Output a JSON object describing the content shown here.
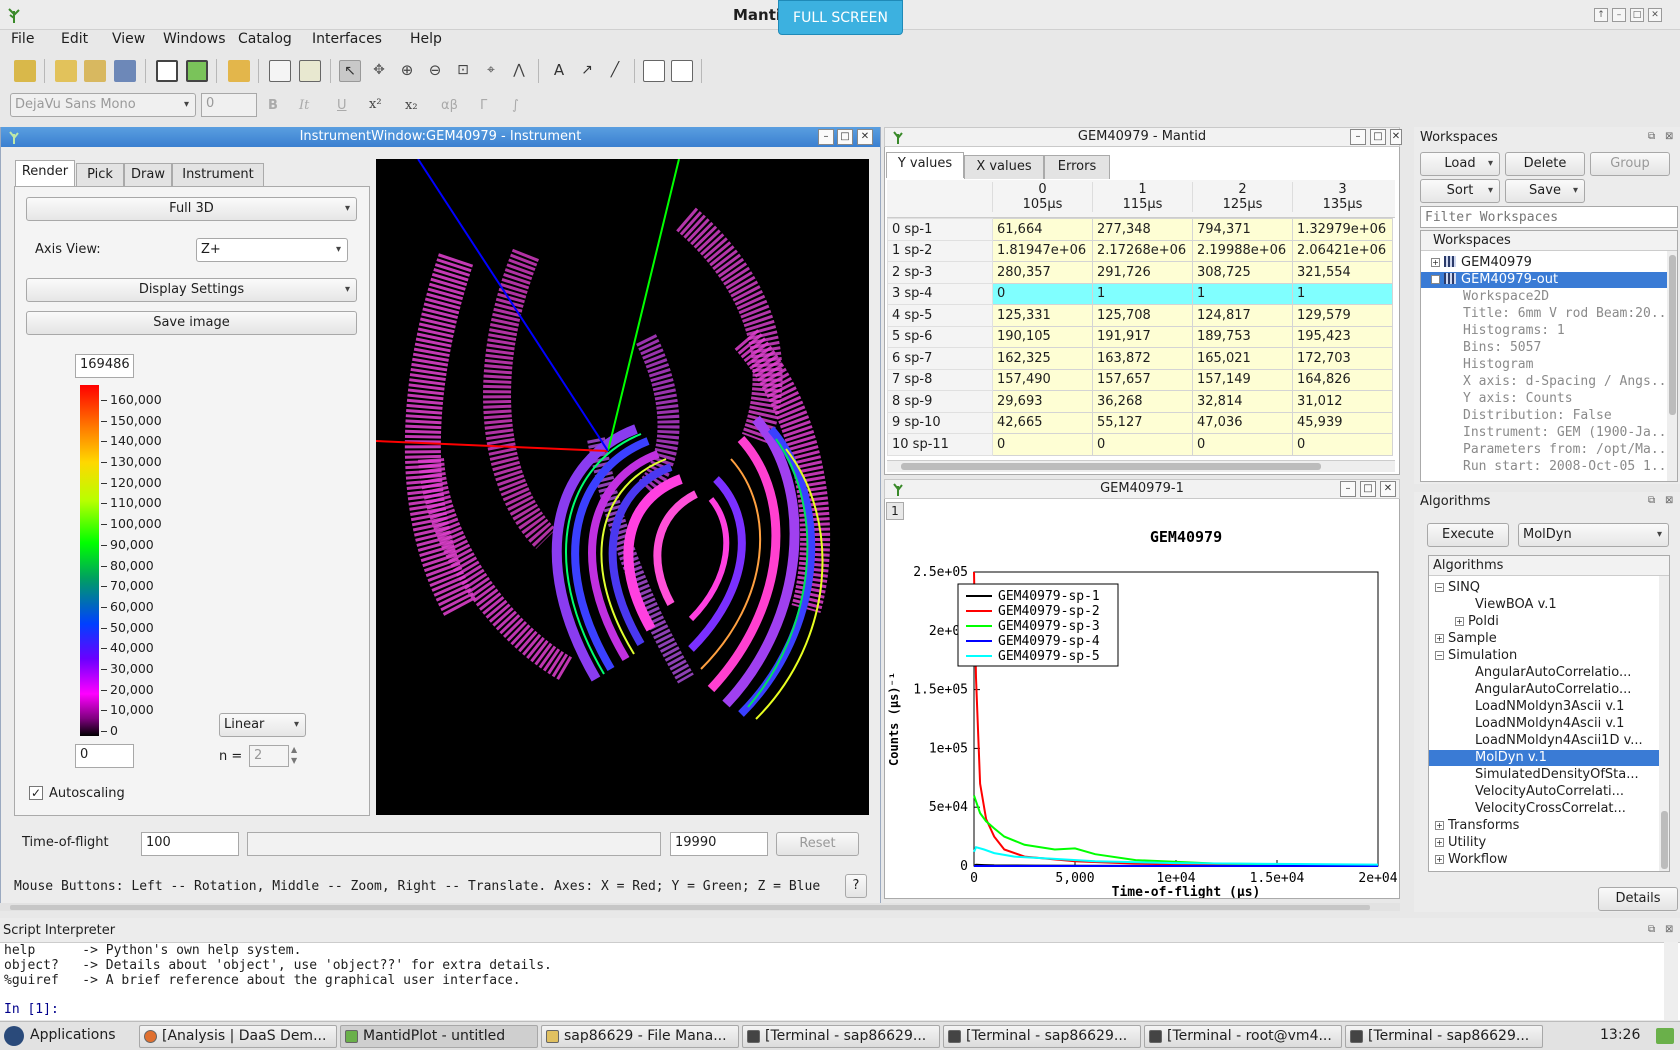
{
  "app": {
    "title": "Mantid",
    "fullscreen_label": "FULL SCREEN"
  },
  "menu": [
    "File",
    "Edit",
    "View",
    "Windows",
    "Catalog",
    "Interfaces",
    "Help"
  ],
  "format_bar": {
    "font": "DejaVu Sans Mono",
    "size": "0",
    "bold": "B",
    "italic": "It",
    "underline": "U",
    "superscript": "x²",
    "subscript": "x₂",
    "greek": "αβ",
    "gamma": "Γ",
    "integral": "∫"
  },
  "instrument_window": {
    "title": "InstrumentWindow:GEM40979 - Instrument",
    "tabs": [
      "Render",
      "Pick",
      "Draw",
      "Instrument"
    ],
    "render_mode": "Full 3D",
    "axis_view_label": "Axis View:",
    "axis_view_value": "Z+",
    "display_settings": "Display Settings",
    "save_image": "Save image",
    "color_max": "169486",
    "color_min": "0",
    "color_ticks": [
      "160,000",
      "150,000",
      "140,000",
      "130,000",
      "120,000",
      "110,000",
      "100,000",
      "90,000",
      "80,000",
      "70,000",
      "60,000",
      "50,000",
      "40,000",
      "30,000",
      "20,000",
      "10,000",
      "0"
    ],
    "scale_type": "Linear",
    "n_label": "n =",
    "n_value": "2",
    "autoscaling": "Autoscaling",
    "tof_label": "Time-of-flight",
    "tof_min": "100",
    "tof_max": "19990",
    "reset": "Reset",
    "help_text": "Mouse Buttons: Left -- Rotation, Middle -- Zoom, Right -- Translate. Axes: X = Red; Y = Green; Z = Blue",
    "help_btn": "?"
  },
  "matrix_window": {
    "title": "GEM40979 - Mantid",
    "tabs": [
      "Y values",
      "X values",
      "Errors"
    ],
    "columns": [
      {
        "index": "0",
        "unit": "105µs"
      },
      {
        "index": "1",
        "unit": "115µs"
      },
      {
        "index": "2",
        "unit": "125µs"
      },
      {
        "index": "3",
        "unit": "135µs"
      }
    ],
    "rows": [
      {
        "label": "0 sp-1",
        "values": [
          "61,664",
          "277,348",
          "794,371",
          "1.32979e+06"
        ]
      },
      {
        "label": "1 sp-2",
        "values": [
          "1.81947e+06",
          "2.17268e+06",
          "2.19988e+06",
          "2.06421e+06"
        ]
      },
      {
        "label": "2 sp-3",
        "values": [
          "280,357",
          "291,726",
          "308,725",
          "321,554"
        ]
      },
      {
        "label": "3 sp-4",
        "values": [
          "0",
          "1",
          "1",
          "1"
        ]
      },
      {
        "label": "4 sp-5",
        "values": [
          "125,331",
          "125,708",
          "124,817",
          "129,579"
        ]
      },
      {
        "label": "5 sp-6",
        "values": [
          "190,105",
          "191,917",
          "189,753",
          "195,423"
        ]
      },
      {
        "label": "6 sp-7",
        "values": [
          "162,325",
          "163,872",
          "165,021",
          "172,703"
        ]
      },
      {
        "label": "7 sp-8",
        "values": [
          "157,490",
          "157,657",
          "157,149",
          "164,826"
        ]
      },
      {
        "label": "8 sp-9",
        "values": [
          "29,693",
          "36,268",
          "32,814",
          "31,012"
        ]
      },
      {
        "label": "9 sp-10",
        "values": [
          "42,665",
          "55,127",
          "47,036",
          "45,939"
        ]
      },
      {
        "label": "10 sp-11",
        "values": [
          "0",
          "0",
          "0",
          "0"
        ]
      }
    ]
  },
  "plot_window": {
    "title": "GEM40979-1",
    "layer": "1",
    "chart_data": {
      "type": "line",
      "title": "GEM40979",
      "xlabel": "Time-of-flight (µs)",
      "ylabel": "Counts (µs)⁻¹",
      "xlim": [
        0,
        20000
      ],
      "ylim": [
        0,
        250000
      ],
      "x_ticks": [
        "0",
        "5,000",
        "1e+04",
        "1.5e+04",
        "2e+04"
      ],
      "y_ticks": [
        "0",
        "5e+04",
        "1e+05",
        "1.5e+05",
        "2e+05",
        "2.5e+05"
      ],
      "legend_position": "top-left",
      "series": [
        {
          "name": "GEM40979-sp-1",
          "color": "#000000",
          "x": [
            0,
            100,
            500,
            1000,
            3000,
            8000,
            20000
          ],
          "y": [
            0,
            1000,
            800,
            500,
            300,
            100,
            0
          ]
        },
        {
          "name": "GEM40979-sp-2",
          "color": "#ff0000",
          "x": [
            0,
            100,
            300,
            600,
            1000,
            1500,
            2500,
            5000,
            8000,
            12000,
            20000
          ],
          "y": [
            250000,
            160000,
            70000,
            40000,
            25000,
            14000,
            8000,
            4000,
            2000,
            800,
            300
          ]
        },
        {
          "name": "GEM40979-sp-3",
          "color": "#00ff00",
          "x": [
            0,
            100,
            300,
            600,
            1000,
            1500,
            2500,
            4000,
            5000,
            6000,
            8000,
            12000,
            20000
          ],
          "y": [
            60000,
            55000,
            45000,
            38000,
            32000,
            25000,
            18000,
            14000,
            15000,
            10000,
            5000,
            2000,
            800
          ]
        },
        {
          "name": "GEM40979-sp-4",
          "color": "#0000ff",
          "x": [
            0,
            1000,
            20000
          ],
          "y": [
            0,
            0,
            0
          ]
        },
        {
          "name": "GEM40979-sp-5",
          "color": "#00ffff",
          "x": [
            0,
            100,
            500,
            1000,
            2000,
            4000,
            6000,
            10000,
            15000,
            20000
          ],
          "y": [
            12000,
            16000,
            14000,
            11000,
            8000,
            6000,
            4000,
            2500,
            1800,
            1200
          ]
        }
      ]
    }
  },
  "workspaces": {
    "title": "Workspaces",
    "load": "Load",
    "delete": "Delete",
    "group": "Group",
    "sort": "Sort",
    "save": "Save",
    "filter_placeholder": "Filter Workspaces",
    "tree_header": "Workspaces",
    "items": [
      {
        "name": "GEM40979",
        "selected": false
      },
      {
        "name": "GEM40979-out",
        "selected": true
      }
    ],
    "details": [
      "Workspace2D",
      "Title: 6mm V rod Beam:20...",
      "Histograms: 1",
      "Bins: 5057",
      "Histogram",
      "X axis: d-Spacing / Angs...",
      "Y axis: Counts",
      "Distribution: False",
      "Instrument: GEM (1900-Ja...",
      "Parameters from: /opt/Ma...",
      "Run start: 2008-Oct-05 1..."
    ]
  },
  "algorithms": {
    "title": "Algorithms",
    "execute": "Execute",
    "selected_algorithm": "MolDyn",
    "tree_header": "Algorithms",
    "items": [
      {
        "label": "SINQ",
        "level": 0,
        "exp": "−"
      },
      {
        "label": "ViewBOA v.1",
        "level": 2,
        "exp": ""
      },
      {
        "label": "Poldi",
        "level": 1,
        "exp": "+"
      },
      {
        "label": "Sample",
        "level": 0,
        "exp": "+"
      },
      {
        "label": "Simulation",
        "level": 0,
        "exp": "−"
      },
      {
        "label": "AngularAutoCorrelatio...",
        "level": 2,
        "exp": ""
      },
      {
        "label": "AngularAutoCorrelatio...",
        "level": 2,
        "exp": ""
      },
      {
        "label": "LoadNMoldyn3Ascii v.1",
        "level": 2,
        "exp": ""
      },
      {
        "label": "LoadNMoldyn4Ascii v.1",
        "level": 2,
        "exp": ""
      },
      {
        "label": "LoadNMoldyn4Ascii1D v...",
        "level": 2,
        "exp": ""
      },
      {
        "label": "MolDyn v.1",
        "level": 2,
        "exp": "",
        "selected": true
      },
      {
        "label": "SimulatedDensityOfSta...",
        "level": 2,
        "exp": ""
      },
      {
        "label": "VelocityAutoCorrelati...",
        "level": 2,
        "exp": ""
      },
      {
        "label": "VelocityCrossCorrelat...",
        "level": 2,
        "exp": ""
      },
      {
        "label": "Transforms",
        "level": 0,
        "exp": "+"
      },
      {
        "label": "Utility",
        "level": 0,
        "exp": "+"
      },
      {
        "label": "Workflow",
        "level": 0,
        "exp": "+"
      }
    ],
    "details": "Details"
  },
  "script": {
    "title": "Script Interpreter",
    "lines": [
      "help      -> Python's own help system.",
      "object?   -> Details about 'object', use 'object??' for extra details.",
      "%guiref   -> A brief reference about the graphical user interface."
    ],
    "prompt": "In [1]:"
  },
  "taskbar": {
    "applications": "Applications",
    "tasks": [
      "[Analysis | DaaS Dem...",
      "MantidPlot - untitled",
      "sap86629 - File Mana...",
      "[Terminal - sap86629...",
      "[Terminal - sap86629...",
      "[Terminal - root@vm4...",
      "[Terminal - sap86629..."
    ],
    "clock": "13:26"
  }
}
